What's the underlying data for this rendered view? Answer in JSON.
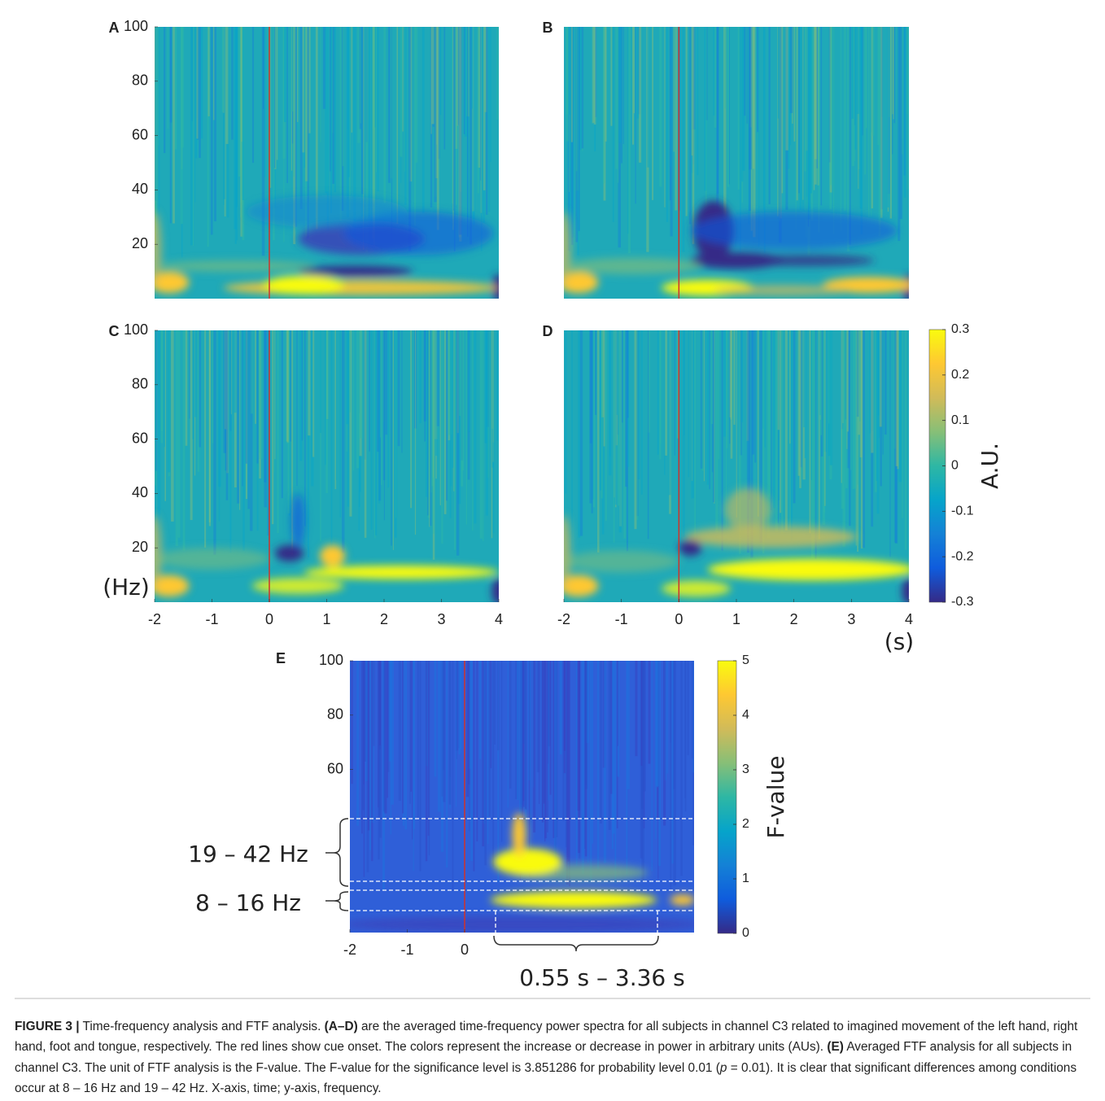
{
  "figure": {
    "panels": [
      {
        "label": "A",
        "xlim": [
          -2,
          4
        ],
        "ylim": [
          0,
          100
        ],
        "xticks": [],
        "yticks": [
          20,
          40,
          60,
          80,
          100
        ]
      },
      {
        "label": "B",
        "xlim": [
          -2,
          4
        ],
        "ylim": [
          0,
          100
        ],
        "xticks": [],
        "yticks": []
      },
      {
        "label": "C",
        "xlim": [
          -2,
          4
        ],
        "ylim": [
          0,
          100
        ],
        "xticks": [
          -2,
          -1,
          0,
          1,
          2,
          3,
          4
        ],
        "yticks": [
          20,
          40,
          60,
          80,
          100
        ]
      },
      {
        "label": "D",
        "xlim": [
          -2,
          4
        ],
        "ylim": [
          0,
          100
        ],
        "xticks": [
          -2,
          -1,
          0,
          1,
          2,
          3,
          4
        ],
        "yticks": []
      },
      {
        "label": "E",
        "xlim": [
          -2,
          4
        ],
        "ylim": [
          0,
          100
        ],
        "xticks": [
          -2,
          -1,
          0
        ],
        "yticks": [
          60,
          80,
          100
        ]
      }
    ],
    "colorbars": [
      {
        "label": "A.U.",
        "lim": [
          -0.3,
          0.3
        ],
        "ticks": [
          -0.3,
          -0.2,
          -0.1,
          0,
          0.1,
          0.2,
          0.3
        ]
      },
      {
        "label": "F-value",
        "lim": [
          0,
          5
        ],
        "ticks": [
          0,
          1,
          2,
          3,
          4,
          5
        ]
      }
    ],
    "y_unit": "(Hz)",
    "x_unit": "(s)",
    "annotations": [
      "19 – 42 Hz",
      "8 – 16 Hz",
      "0.55 s – 3.36 s"
    ]
  },
  "caption": {
    "segments": [
      "FIGURE 3 |",
      " Time-frequency analysis and FTF analysis. ",
      "(A–D)",
      " are the averaged time-frequency power spectra for all subjects in channel C3 related to imagined movement of the left hand, right hand, foot and tongue, respectively. The red lines show cue onset. The colors represent the increase or decrease in power in arbitrary units (AUs). ",
      "(E)",
      " Averaged FTF analysis for all subjects in channel C3. The unit of FTF analysis is the F-value. The F-value for the significance level is 3.851286 for probability level 0.01 (",
      "p",
      " = 0.01). It is clear that significant differences among conditions occur at 8 – 16 Hz and 19 – 42 Hz. X-axis, time; y-axis, frequency."
    ]
  }
}
